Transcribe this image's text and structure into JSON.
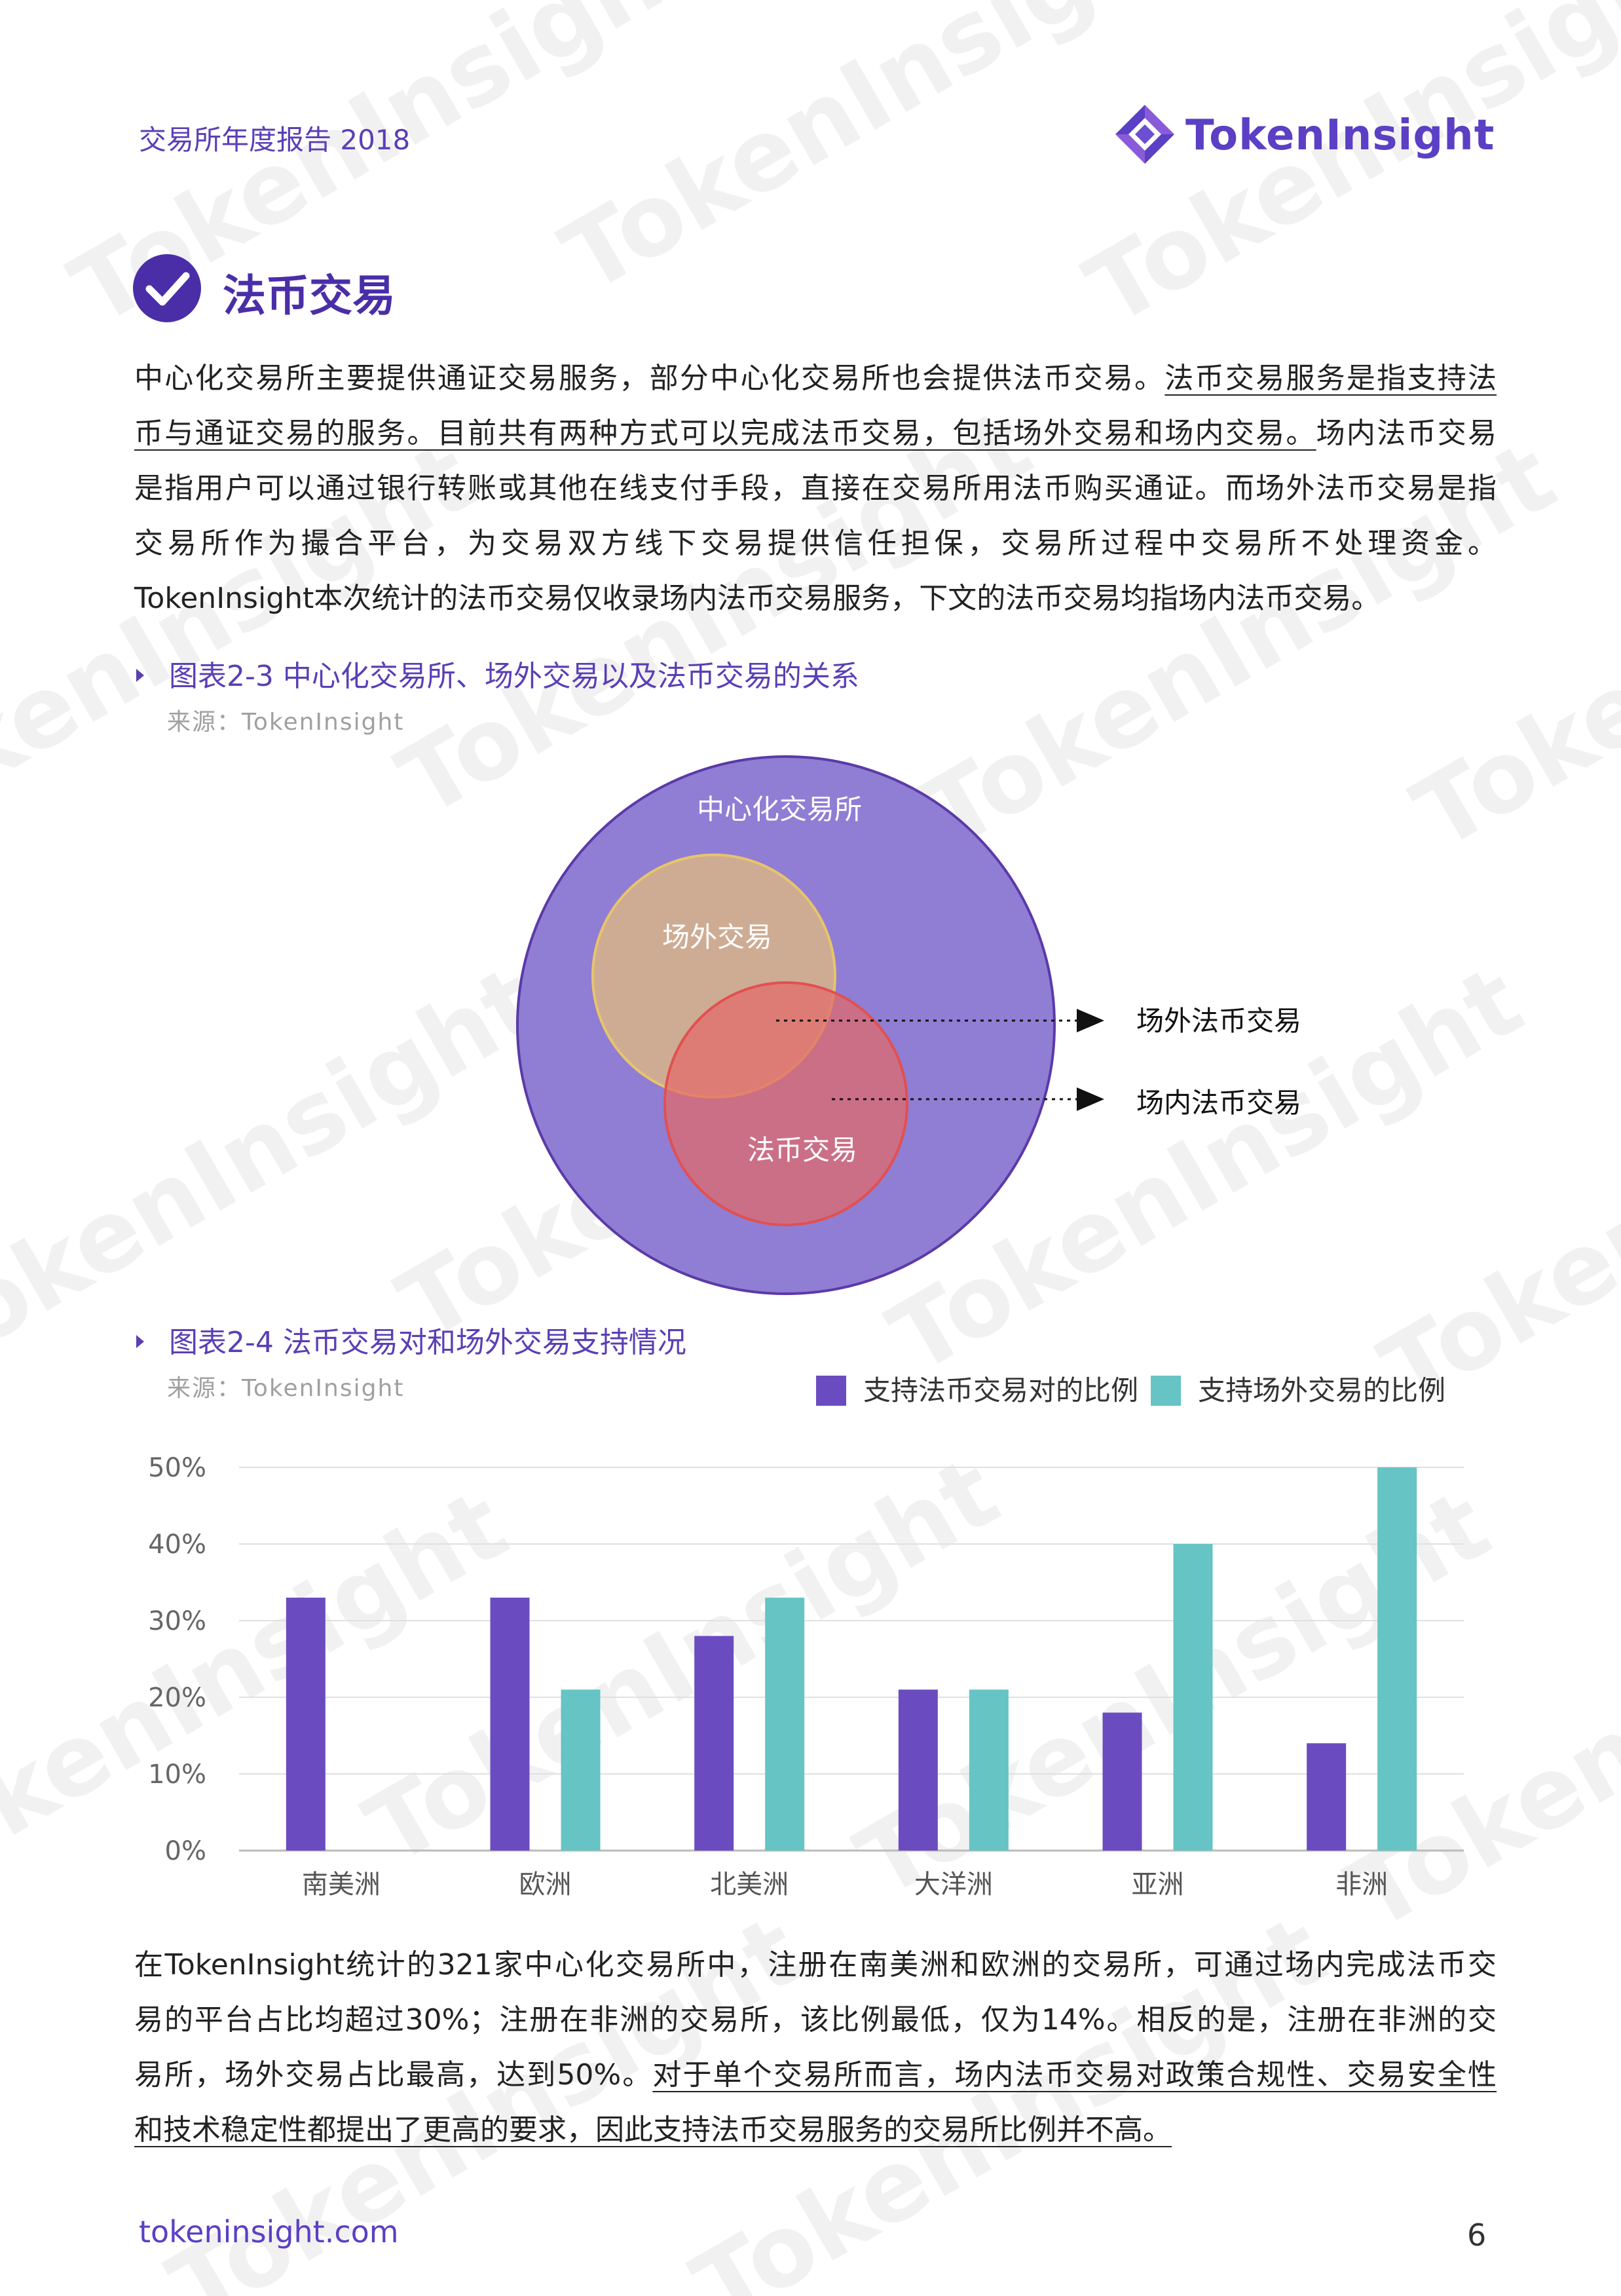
{
  "header": {
    "report_title": "交易所年度报告 2018",
    "brand_name": "TokenInsight",
    "brand_color": "#5b3fc4"
  },
  "section": {
    "title": "法币交易",
    "icon": "check-circle-icon"
  },
  "paragraph1": {
    "lines": [
      [
        {
          "t": "中心化交易所主要提供通证交易服务，部分中心化交易所也会提供法币交易。"
        },
        {
          "t": "法币交易服务是指支持法",
          "u": true
        }
      ],
      [
        {
          "t": "币与通证交易的服务。目前共有两种方式可以完成法币交易，包括场外交易和场内交易。",
          "u": true
        },
        {
          "t": "场内法币交易"
        }
      ],
      [
        {
          "t": "是指用户可以通过银行转账或其他在线支付手段，直接在交易所用法币购买通证。而场外法币交易是指"
        }
      ],
      [
        {
          "t": "交易所作为撮合平台，为交易双方线下交易提供信任担保，交易所过程中交易所不处理资金。"
        }
      ],
      [
        {
          "t": "TokenInsight本次统计的法币交易仅收录场内法币交易服务，下文的法币交易均指场内法币交易。"
        }
      ]
    ]
  },
  "figure1": {
    "title": "图表2-3 中心化交易所、场外交易以及法币交易的关系",
    "source": "来源：TokenInsight",
    "outer_label": "中心化交易所",
    "otc_label": "场外交易",
    "fiat_label": "法币交易",
    "callout_otc_fiat": "场外法币交易",
    "callout_onsite_fiat": "场内法币交易",
    "colors": {
      "outer": "#8f7ed4",
      "otc": "#d4b08e",
      "fiat": "#e26a6a"
    }
  },
  "figure2": {
    "title": "图表2-4 法币交易对和场外交易支持情况",
    "source": "来源：TokenInsight"
  },
  "chart_data": {
    "type": "bar",
    "categories": [
      "南美洲",
      "欧洲",
      "北美洲",
      "大洋洲",
      "亚洲",
      "非洲"
    ],
    "series": [
      {
        "name": "支持法币交易对的比例",
        "values": [
          33,
          33,
          28,
          21,
          18,
          14
        ],
        "color": "#6a4cc0"
      },
      {
        "name": "支持场外交易的比例",
        "values": [
          0,
          21,
          33,
          21,
          40,
          50
        ],
        "color": "#66c4c4"
      }
    ],
    "ylim": [
      0,
      50
    ],
    "yticks": [
      "0%",
      "10%",
      "20%",
      "30%",
      "40%",
      "50%"
    ],
    "legend": "top-right",
    "grid": true
  },
  "paragraph2": {
    "lines": [
      [
        {
          "t": "在TokenInsight统计的321家中心化交易所中，注册在南美洲和欧洲的交易所，可通过场内完成法币交"
        }
      ],
      [
        {
          "t": "易的平台占比均超过30%；注册在非洲的交易所，该比例最低，仅为14%。相反的是，注册在非洲的交"
        }
      ],
      [
        {
          "t": "易所，场外交易占比最高，达到50%。"
        },
        {
          "t": "对于单个交易所而言，场内法币交易对政策合规性、交易安全性",
          "u": true
        }
      ],
      [
        {
          "t": "和技术稳定性都提出了更高的要求，因此支持法币交易服务的交易所比例并不高。",
          "u": true
        }
      ]
    ]
  },
  "footer": {
    "url": "tokeninsight.com",
    "page_number": "6"
  },
  "watermark": {
    "text": "TokenInsight"
  }
}
